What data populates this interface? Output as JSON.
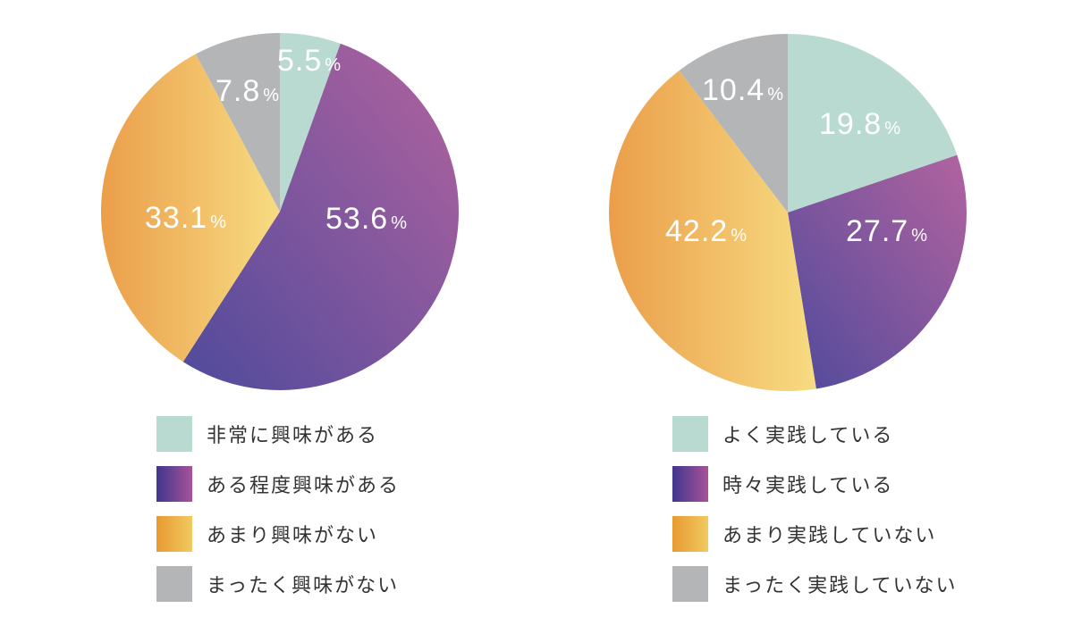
{
  "page": {
    "background_color": "#ffffff",
    "text_color": "#333333",
    "label_text_color": "#ffffff"
  },
  "chart_data": [
    {
      "type": "pie",
      "title": "",
      "categories": [
        "非常に興味がある",
        "ある程度興味がある",
        "あまり興味がない",
        "まったく興味がない"
      ],
      "values": [
        5.5,
        53.6,
        33.1,
        7.8
      ],
      "value_labels": [
        "5.5",
        "53.6",
        "33.1",
        "7.8"
      ],
      "unit": "%",
      "start_angle_deg": 0,
      "direction": "clockwise",
      "legend_position": "bottom",
      "slice_styles": [
        {
          "type": "solid",
          "fill": "#b9dad1"
        },
        {
          "type": "gradient",
          "from": "#4f4a9c",
          "to": "#b2639f",
          "direction": "bl-tr"
        },
        {
          "type": "gradient",
          "from": "#eb9e4a",
          "to": "#f7dc82",
          "direction": "lr"
        },
        {
          "type": "solid",
          "fill": "#b4b5b7"
        }
      ],
      "legend_styles": [
        {
          "type": "solid",
          "fill": "#b9dad1"
        },
        {
          "type": "gradient",
          "from": "#40368c",
          "to": "#a8529a",
          "direction": "lr"
        },
        {
          "type": "gradient",
          "from": "#e89a31",
          "to": "#f0ca60",
          "direction": "lr"
        },
        {
          "type": "solid",
          "fill": "#b4b5b7"
        }
      ]
    },
    {
      "type": "pie",
      "title": "",
      "categories": [
        "よく実践している",
        "時々実践している",
        "あまり実践していない",
        "まったく実践していない"
      ],
      "values": [
        19.8,
        27.7,
        42.2,
        10.4
      ],
      "value_labels": [
        "19.8",
        "27.7",
        "42.2",
        "10.4"
      ],
      "unit": "%",
      "start_angle_deg": 0,
      "direction": "clockwise",
      "legend_position": "bottom",
      "slice_styles": [
        {
          "type": "solid",
          "fill": "#b9dad1"
        },
        {
          "type": "gradient",
          "from": "#4f4a9c",
          "to": "#b2639f",
          "direction": "bl-tr"
        },
        {
          "type": "gradient",
          "from": "#eb9e4a",
          "to": "#f7dc82",
          "direction": "lr"
        },
        {
          "type": "solid",
          "fill": "#b4b5b7"
        }
      ],
      "legend_styles": [
        {
          "type": "solid",
          "fill": "#b9dad1"
        },
        {
          "type": "gradient",
          "from": "#40368c",
          "to": "#a8529a",
          "direction": "lr"
        },
        {
          "type": "gradient",
          "from": "#e89a31",
          "to": "#f0ca60",
          "direction": "lr"
        },
        {
          "type": "solid",
          "fill": "#b4b5b7"
        }
      ]
    }
  ]
}
